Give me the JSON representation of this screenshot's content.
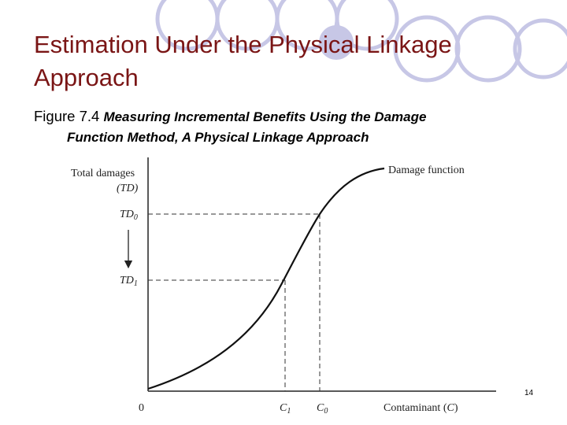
{
  "slide": {
    "title": "Estimation Under the Physical Linkage Approach",
    "title_color": "#7a1515",
    "caption_fignum": "Figure 7.4",
    "caption_text_1": "Measuring Incremental Benefits Using the Damage",
    "caption_text_2": "Function Method, A Physical Linkage Approach",
    "page_number": "14",
    "deco_circle_color": "#c7c7e6"
  },
  "diagram": {
    "y_axis_label_1": "Total damages",
    "y_axis_label_2": "TD",
    "td0_label": "TD",
    "td0_sub": "0",
    "td1_label": "TD",
    "td1_sub": "1",
    "origin_label": "0",
    "c1_label": "C",
    "c1_sub": "1",
    "c0_label": "C",
    "c0_sub": "0",
    "x_axis_label": "Contaminant",
    "x_axis_symbol": "C",
    "curve_label": "Damage function"
  }
}
